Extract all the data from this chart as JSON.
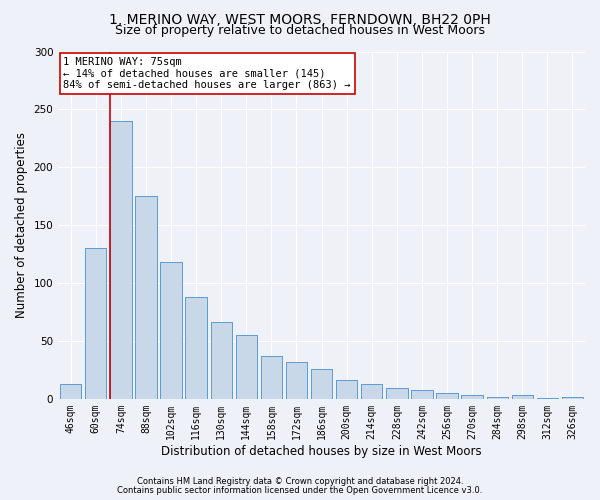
{
  "title1": "1, MERINO WAY, WEST MOORS, FERNDOWN, BH22 0PH",
  "title2": "Size of property relative to detached houses in West Moors",
  "xlabel": "Distribution of detached houses by size in West Moors",
  "ylabel": "Number of detached properties",
  "categories": [
    "46sqm",
    "60sqm",
    "74sqm",
    "88sqm",
    "102sqm",
    "116sqm",
    "130sqm",
    "144sqm",
    "158sqm",
    "172sqm",
    "186sqm",
    "200sqm",
    "214sqm",
    "228sqm",
    "242sqm",
    "256sqm",
    "270sqm",
    "284sqm",
    "298sqm",
    "312sqm",
    "326sqm"
  ],
  "values": [
    13,
    130,
    240,
    175,
    118,
    88,
    66,
    55,
    37,
    32,
    26,
    16,
    13,
    9,
    8,
    5,
    3,
    2,
    3,
    1,
    2
  ],
  "bar_color": "#c8d8e8",
  "bar_edge_color": "#5b9bd5",
  "marker_line_color": "#cc0000",
  "annotation_line1": "1 MERINO WAY: 75sqm",
  "annotation_line2": "← 14% of detached houses are smaller (145)",
  "annotation_line3": "84% of semi-detached houses are larger (863) →",
  "annotation_box_color": "#ffffff",
  "annotation_box_edge": "#cc0000",
  "ylim": [
    0,
    300
  ],
  "yticks": [
    0,
    50,
    100,
    150,
    200,
    250,
    300
  ],
  "footer1": "Contains HM Land Registry data © Crown copyright and database right 2024.",
  "footer2": "Contains public sector information licensed under the Open Government Licence v3.0.",
  "background_color": "#eef2f8",
  "grid_color": "#ffffff",
  "title1_fontsize": 10,
  "title2_fontsize": 9,
  "xlabel_fontsize": 8.5,
  "ylabel_fontsize": 8.5,
  "tick_fontsize": 7,
  "footer_fontsize": 6,
  "annot_fontsize": 7.5
}
